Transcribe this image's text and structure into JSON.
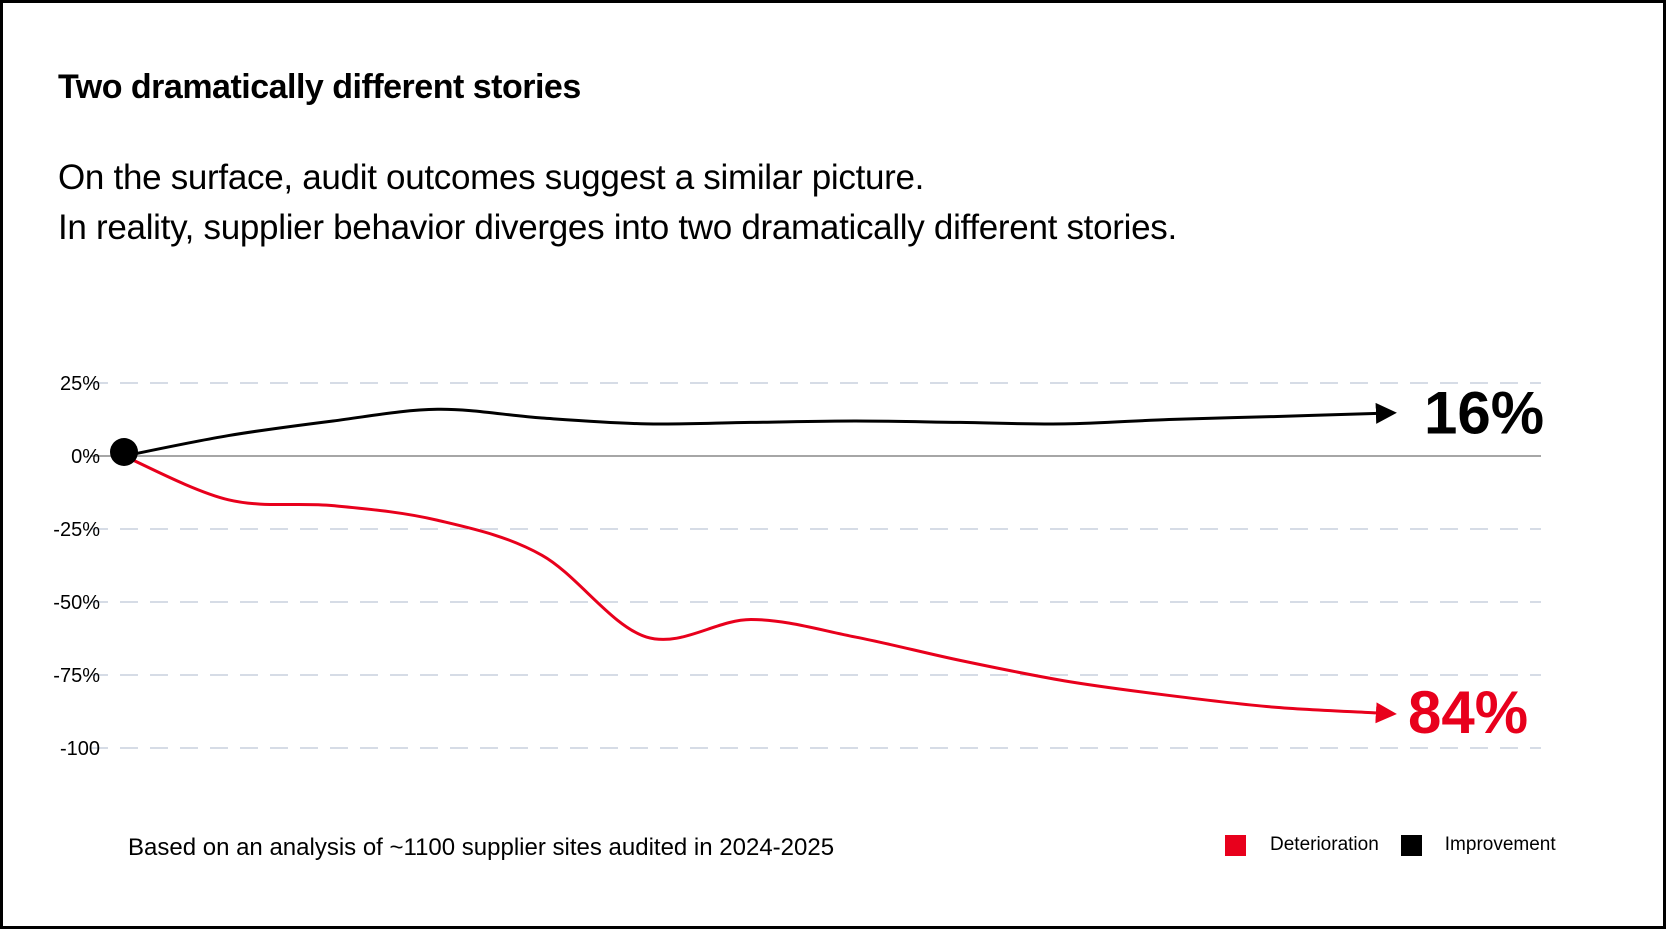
{
  "title": "Two dramatically different stories",
  "subtitle_lines": [
    "On the surface, audit outcomes suggest a similar picture.",
    "In reality, supplier behavior diverges into two dramatically different stories."
  ],
  "footer": "Based on an analysis of ~1100 supplier sites audited  in 2024-2025",
  "colors": {
    "deterioration": "#e8001c",
    "improvement": "#000000",
    "grid": "#c8d0de",
    "zero_line": "#888888"
  },
  "chart_data": {
    "type": "line",
    "title": "",
    "xlabel": "",
    "ylabel": "",
    "ylim": [
      -100,
      25
    ],
    "y_ticks": [
      25,
      0,
      -25,
      -50,
      -75,
      -100
    ],
    "y_tick_labels": [
      "25%",
      "0%",
      "-25%",
      "-50%",
      "-75%",
      "-100"
    ],
    "grid": "horizontal dashed",
    "legend_position": "bottom-right",
    "start_marker": "dot at 0%",
    "series": [
      {
        "name": "Deterioration",
        "color": "#e8001c",
        "end_label": "84%",
        "values": [
          0,
          -15,
          -17,
          -22,
          -34,
          -62,
          -56,
          -62,
          -70,
          -77,
          -82,
          -86,
          -88
        ]
      },
      {
        "name": "Improvement",
        "color": "#000000",
        "end_label": "16%",
        "values": [
          0,
          7,
          12,
          16,
          13,
          11,
          11.5,
          12,
          11.5,
          11,
          12.5,
          13.5,
          14.6
        ]
      }
    ]
  }
}
